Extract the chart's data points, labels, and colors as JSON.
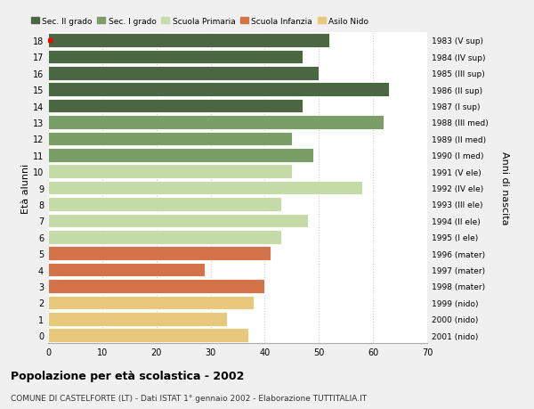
{
  "ages": [
    18,
    17,
    16,
    15,
    14,
    13,
    12,
    11,
    10,
    9,
    8,
    7,
    6,
    5,
    4,
    3,
    2,
    1,
    0
  ],
  "values": [
    52,
    47,
    50,
    63,
    47,
    62,
    45,
    49,
    45,
    58,
    43,
    48,
    43,
    41,
    29,
    40,
    38,
    33,
    37
  ],
  "right_labels": [
    "1983 (V sup)",
    "1984 (IV sup)",
    "1985 (III sup)",
    "1986 (II sup)",
    "1987 (I sup)",
    "1988 (III med)",
    "1989 (II med)",
    "1990 (I med)",
    "1991 (V ele)",
    "1992 (IV ele)",
    "1993 (III ele)",
    "1994 (II ele)",
    "1995 (I ele)",
    "1996 (mater)",
    "1997 (mater)",
    "1998 (mater)",
    "1999 (nido)",
    "2000 (nido)",
    "2001 (nido)"
  ],
  "colors": [
    "#4a6741",
    "#4a6741",
    "#4a6741",
    "#4a6741",
    "#4a6741",
    "#7a9e65",
    "#7a9e65",
    "#7a9e65",
    "#c5dba8",
    "#c5dba8",
    "#c5dba8",
    "#c5dba8",
    "#c5dba8",
    "#d4724a",
    "#d4724a",
    "#d4724a",
    "#e8c87a",
    "#e8c87a",
    "#e8c87a"
  ],
  "legend_labels": [
    "Sec. II grado",
    "Sec. I grado",
    "Scuola Primaria",
    "Scuola Infanzia",
    "Asilo Nido"
  ],
  "legend_colors": [
    "#4a6741",
    "#7a9e65",
    "#c5dba8",
    "#d4724a",
    "#e8c87a"
  ],
  "ylabel_left": "Età alunni",
  "ylabel_right": "Anni di nascita",
  "title": "Popolazione per età scolastica - 2002",
  "subtitle": "COMUNE DI CASTELFORTE (LT) - Dati ISTAT 1° gennaio 2002 - Elaborazione TUTTITALIA.IT",
  "xlim": [
    0,
    70
  ],
  "xticks": [
    0,
    10,
    20,
    30,
    40,
    50,
    60,
    70
  ],
  "background_color": "#f0f0f0",
  "bar_background": "#ffffff",
  "grid_color": "#cccccc",
  "red_dot_age": 18
}
